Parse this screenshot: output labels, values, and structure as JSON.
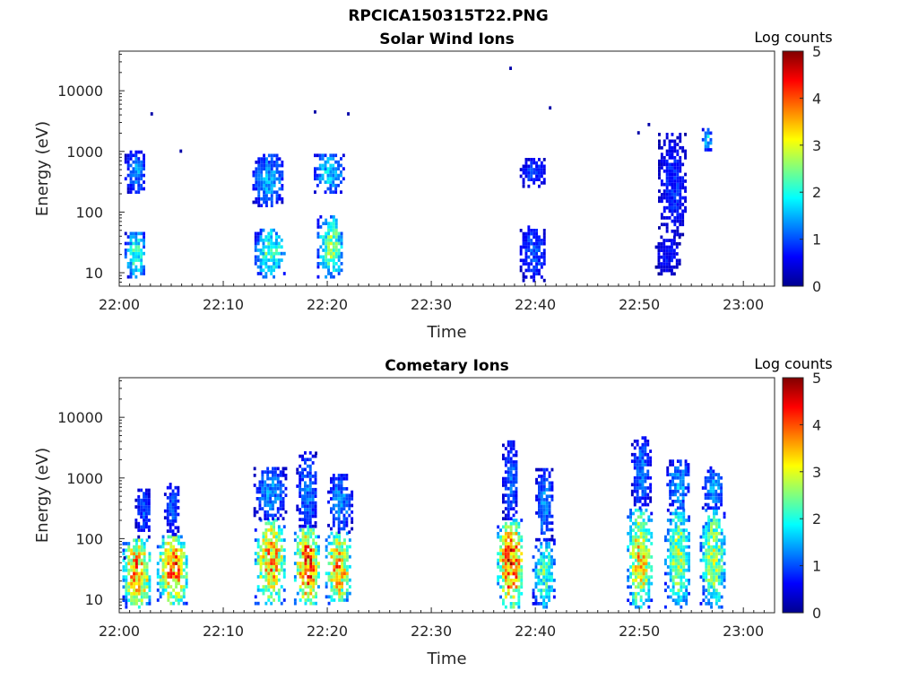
{
  "figure": {
    "title": "RPCICA150315T22.PNG"
  },
  "chart_data": [
    {
      "type": "heatmap",
      "title": "Solar Wind Ions",
      "xlabel": "Time",
      "ylabel": "Energy (eV)",
      "x_ticks": [
        "22:00",
        "22:10",
        "22:20",
        "22:30",
        "22:40",
        "22:50",
        "23:00"
      ],
      "x_range_minutes_after_22_00": [
        0,
        63
      ],
      "y_scale": "log",
      "y_ticks": [
        10,
        100,
        1000,
        10000
      ],
      "y_tick_labels": [
        "10",
        "100",
        "1000",
        "10000"
      ],
      "ylim": [
        6,
        45000
      ],
      "colorbar": {
        "label": "Log counts",
        "range": [
          0,
          5
        ],
        "ticks": [
          "0",
          "1",
          "2",
          "3",
          "4",
          "5"
        ],
        "colormap": "jet"
      },
      "bursts": [
        {
          "t_start": 0.5,
          "t_end": 2.5,
          "e_min": 8,
          "e_max": 45,
          "peak": 2.0
        },
        {
          "t_start": 0.5,
          "t_end": 2.5,
          "e_min": 200,
          "e_max": 950,
          "peak": 1.3
        },
        {
          "t_start": 13.0,
          "t_end": 15.8,
          "e_min": 8,
          "e_max": 50,
          "peak": 2.2
        },
        {
          "t_start": 12.8,
          "t_end": 15.8,
          "e_min": 120,
          "e_max": 850,
          "peak": 1.4
        },
        {
          "t_start": 19.0,
          "t_end": 21.5,
          "e_min": 8,
          "e_max": 80,
          "peak": 2.4
        },
        {
          "t_start": 18.7,
          "t_end": 21.5,
          "e_min": 200,
          "e_max": 900,
          "peak": 1.7
        },
        {
          "t_start": 38.5,
          "t_end": 41.0,
          "e_min": 7,
          "e_max": 60,
          "peak": 1.0
        },
        {
          "t_start": 38.5,
          "t_end": 41.0,
          "e_min": 250,
          "e_max": 700,
          "peak": 0.9
        },
        {
          "t_start": 51.5,
          "t_end": 53.8,
          "e_min": 9,
          "e_max": 40,
          "peak": 0.7
        },
        {
          "t_start": 51.8,
          "t_end": 54.5,
          "e_min": 40,
          "e_max": 1800,
          "peak": 0.8
        },
        {
          "t_start": 56.0,
          "t_end": 57.0,
          "e_min": 1000,
          "e_max": 2200,
          "peak": 1.6
        }
      ],
      "isolated_points": [
        {
          "t": 3.0,
          "e": 3900
        },
        {
          "t": 5.8,
          "e": 950
        },
        {
          "t": 18.7,
          "e": 4200
        },
        {
          "t": 21.9,
          "e": 3900
        },
        {
          "t": 37.5,
          "e": 22000
        },
        {
          "t": 41.3,
          "e": 4900
        },
        {
          "t": 49.8,
          "e": 1900
        },
        {
          "t": 50.8,
          "e": 2600
        }
      ]
    },
    {
      "type": "heatmap",
      "title": "Cometary Ions",
      "xlabel": "Time",
      "ylabel": "Energy (eV)",
      "x_ticks": [
        "22:00",
        "22:10",
        "22:20",
        "22:30",
        "22:40",
        "22:50",
        "23:00"
      ],
      "x_range_minutes_after_22_00": [
        0,
        63
      ],
      "y_scale": "log",
      "y_ticks": [
        10,
        100,
        1000,
        10000
      ],
      "y_tick_labels": [
        "10",
        "100",
        "1000",
        "10000"
      ],
      "ylim": [
        6,
        45000
      ],
      "colorbar": {
        "label": "Log counts",
        "range": [
          0,
          5
        ],
        "ticks": [
          "0",
          "1",
          "2",
          "3",
          "4",
          "5"
        ],
        "colormap": "jet"
      },
      "bursts": [
        {
          "t_start": 0.3,
          "t_end": 3.0,
          "e_min": 7,
          "e_max": 100,
          "peak": 3.6
        },
        {
          "t_start": 1.5,
          "t_end": 3.0,
          "e_min": 100,
          "e_max": 650,
          "peak": 1.0
        },
        {
          "t_start": 3.6,
          "t_end": 6.5,
          "e_min": 8,
          "e_max": 110,
          "peak": 3.8
        },
        {
          "t_start": 4.3,
          "t_end": 5.8,
          "e_min": 110,
          "e_max": 800,
          "peak": 1.0
        },
        {
          "t_start": 13.0,
          "t_end": 16.0,
          "e_min": 8,
          "e_max": 200,
          "peak": 3.4
        },
        {
          "t_start": 12.9,
          "t_end": 16.0,
          "e_min": 200,
          "e_max": 1400,
          "peak": 1.3
        },
        {
          "t_start": 16.8,
          "t_end": 19.2,
          "e_min": 8,
          "e_max": 150,
          "peak": 3.9
        },
        {
          "t_start": 17.0,
          "t_end": 19.0,
          "e_min": 150,
          "e_max": 2500,
          "peak": 1.2
        },
        {
          "t_start": 19.8,
          "t_end": 22.2,
          "e_min": 8,
          "e_max": 120,
          "peak": 3.5
        },
        {
          "t_start": 20.0,
          "t_end": 22.3,
          "e_min": 120,
          "e_max": 1100,
          "peak": 1.3
        },
        {
          "t_start": 36.3,
          "t_end": 38.8,
          "e_min": 7,
          "e_max": 200,
          "peak": 3.9
        },
        {
          "t_start": 36.8,
          "t_end": 38.3,
          "e_min": 200,
          "e_max": 4000,
          "peak": 1.1
        },
        {
          "t_start": 39.7,
          "t_end": 41.8,
          "e_min": 7,
          "e_max": 90,
          "peak": 2.2
        },
        {
          "t_start": 40.0,
          "t_end": 41.6,
          "e_min": 90,
          "e_max": 1300,
          "peak": 1.3
        },
        {
          "t_start": 48.8,
          "t_end": 51.2,
          "e_min": 7,
          "e_max": 300,
          "peak": 3.2
        },
        {
          "t_start": 49.2,
          "t_end": 51.0,
          "e_min": 300,
          "e_max": 4500,
          "peak": 1.2
        },
        {
          "t_start": 52.4,
          "t_end": 54.8,
          "e_min": 7,
          "e_max": 300,
          "peak": 2.6
        },
        {
          "t_start": 52.6,
          "t_end": 54.8,
          "e_min": 300,
          "e_max": 1800,
          "peak": 1.5
        },
        {
          "t_start": 55.8,
          "t_end": 58.2,
          "e_min": 7,
          "e_max": 300,
          "peak": 2.6
        },
        {
          "t_start": 56.0,
          "t_end": 58.0,
          "e_min": 300,
          "e_max": 1400,
          "peak": 1.4
        }
      ],
      "isolated_points": [
        {
          "t": 0.4,
          "e": 45
        },
        {
          "t": 18.8,
          "e": 2400
        }
      ]
    }
  ]
}
